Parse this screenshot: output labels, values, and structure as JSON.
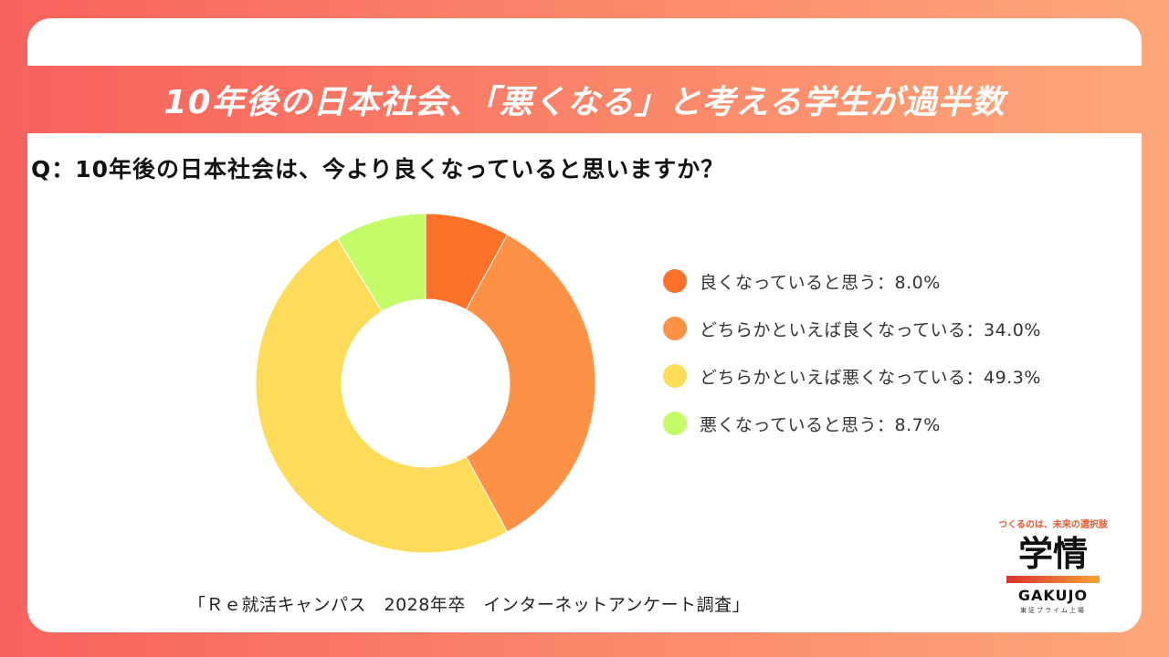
{
  "banner": {
    "title": "10年後の日本社会、「悪くなる」と考える学生が過半数"
  },
  "question": "Q：10年後の日本社会は、今より良くなっていると思いますか？",
  "chart_data": {
    "type": "pie",
    "subtype": "donut",
    "title": "Q：10年後の日本社会は、今より良くなっていると思いますか？",
    "categories": [
      "良くなっていると思う",
      "どちらかといえば良くなっている",
      "どちらかといえば悪くなっている",
      "悪くなっていると思う"
    ],
    "values": [
      8.0,
      34.0,
      49.3,
      8.7
    ],
    "unit": "%",
    "colors": [
      "#fd7128",
      "#fd9145",
      "#fedc5a",
      "#c3fb69"
    ],
    "legend_position": "right",
    "legend": [
      {
        "label": "良くなっていると思う：8.0%",
        "color": "#fd7128"
      },
      {
        "label": "どちらかといえば良くなっている：34.0%",
        "color": "#fd9145"
      },
      {
        "label": "どちらかといえば悪くなっている：49.3%",
        "color": "#fedc5a"
      },
      {
        "label": "悪くなっていると思う：8.7%",
        "color": "#c3fb69"
      }
    ]
  },
  "source": "「Ｒｅ就活キャンパス　2028年卒　インターネットアンケート調査」",
  "logo": {
    "tagline": "つくるのは、未来の選択肢",
    "kanji": "学情",
    "roman": "GAKUJO",
    "sub": "東証プライム上場"
  }
}
